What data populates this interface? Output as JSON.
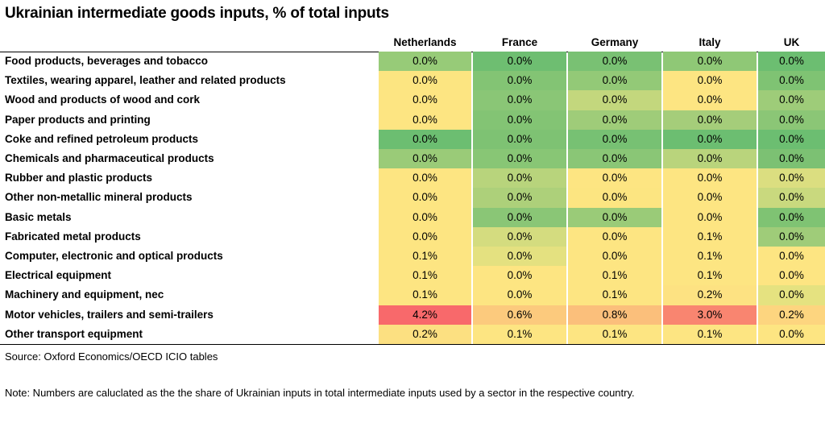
{
  "title": "Ukrainian intermediate goods inputs, % of total inputs",
  "source": "Source: Oxford Economics/OECD ICIO tables",
  "note": "Note: Numbers are caluclated as the the share of Ukrainian inputs in total intermediate inputs used by a sector in the respective country.",
  "chart_data": {
    "type": "heatmap",
    "title": "Ukrainian intermediate goods inputs, % of total inputs",
    "columns": [
      "Netherlands",
      "France",
      "Germany",
      "Italy",
      "UK"
    ],
    "rows": [
      "Food products, beverages and tobacco",
      "Textiles, wearing apparel, leather and related products",
      "Wood and products of wood and cork",
      "Paper products and printing",
      "Coke and refined petroleum products",
      "Chemicals and pharmaceutical products",
      "Rubber and plastic products",
      "Other non-metallic mineral products",
      "Basic metals",
      "Fabricated metal products",
      "Computer, electronic and optical products",
      "Electrical equipment",
      "Machinery and equipment, nec",
      "Motor vehicles, trailers and semi-trailers",
      "Other transport equipment"
    ],
    "labels": [
      [
        "0.0%",
        "0.0%",
        "0.0%",
        "0.0%",
        "0.0%"
      ],
      [
        "0.0%",
        "0.0%",
        "0.0%",
        "0.0%",
        "0.0%"
      ],
      [
        "0.0%",
        "0.0%",
        "0.0%",
        "0.0%",
        "0.0%"
      ],
      [
        "0.0%",
        "0.0%",
        "0.0%",
        "0.0%",
        "0.0%"
      ],
      [
        "0.0%",
        "0.0%",
        "0.0%",
        "0.0%",
        "0.0%"
      ],
      [
        "0.0%",
        "0.0%",
        "0.0%",
        "0.0%",
        "0.0%"
      ],
      [
        "0.0%",
        "0.0%",
        "0.0%",
        "0.0%",
        "0.0%"
      ],
      [
        "0.0%",
        "0.0%",
        "0.0%",
        "0.0%",
        "0.0%"
      ],
      [
        "0.0%",
        "0.0%",
        "0.0%",
        "0.0%",
        "0.0%"
      ],
      [
        "0.0%",
        "0.0%",
        "0.0%",
        "0.1%",
        "0.0%"
      ],
      [
        "0.1%",
        "0.0%",
        "0.0%",
        "0.1%",
        "0.0%"
      ],
      [
        "0.1%",
        "0.0%",
        "0.1%",
        "0.1%",
        "0.0%"
      ],
      [
        "0.1%",
        "0.0%",
        "0.1%",
        "0.2%",
        "0.0%"
      ],
      [
        "4.2%",
        "0.6%",
        "0.8%",
        "3.0%",
        "0.2%"
      ],
      [
        "0.2%",
        "0.1%",
        "0.1%",
        "0.1%",
        "0.0%"
      ]
    ],
    "colors": [
      [
        "#97cb78",
        "#6ebe71",
        "#79c173",
        "#8fc876",
        "#6cbe71"
      ],
      [
        "#fce581",
        "#83c474",
        "#93c977",
        "#fde582",
        "#7fc373"
      ],
      [
        "#fde582",
        "#8ac676",
        "#c3d77d",
        "#fde582",
        "#9ecc79"
      ],
      [
        "#fde582",
        "#83c474",
        "#9fcc79",
        "#a5cd7a",
        "#8bc676"
      ],
      [
        "#6cbe71",
        "#7ec273",
        "#77c173",
        "#6cbe71",
        "#6cbe71"
      ],
      [
        "#9acb78",
        "#88c675",
        "#8ac676",
        "#b9d47c",
        "#7cc173"
      ],
      [
        "#fde582",
        "#b8d47c",
        "#fde582",
        "#fde582",
        "#dbde80"
      ],
      [
        "#fde582",
        "#add07a",
        "#fce581",
        "#fde582",
        "#c9d97e"
      ],
      [
        "#fde582",
        "#8ac676",
        "#9acb78",
        "#fde582",
        "#7fc373"
      ],
      [
        "#fde582",
        "#d4dc7f",
        "#fde582",
        "#fde582",
        "#9fcc79"
      ],
      [
        "#fde582",
        "#e4e180",
        "#fde582",
        "#fde582",
        "#fde582"
      ],
      [
        "#fde582",
        "#fde582",
        "#fde582",
        "#fde582",
        "#fde582"
      ],
      [
        "#fde582",
        "#fde582",
        "#fde582",
        "#fde282",
        "#e5e280"
      ],
      [
        "#f8696b",
        "#fcca7d",
        "#fbbf7b",
        "#f98570",
        "#fdd57f"
      ],
      [
        "#fce081",
        "#fde582",
        "#fde582",
        "#fde582",
        "#fde582"
      ]
    ]
  }
}
